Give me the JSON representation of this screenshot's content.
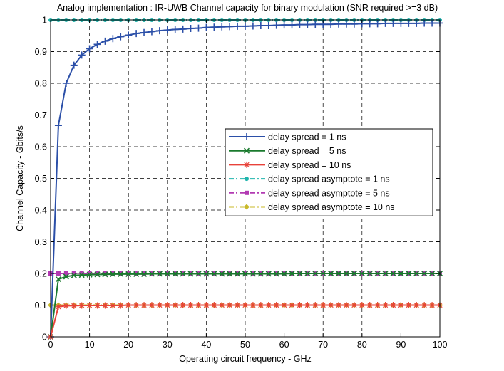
{
  "chart_data": {
    "type": "line",
    "title": "Analog implementation : IR-UWB Channel capacity for binary modulation (SNR required >=3 dB)",
    "xlabel": "Operating circuit frequency - GHz",
    "ylabel": "Channel Capacity - Gbits/s",
    "xlim": [
      0,
      100
    ],
    "ylim": [
      0,
      1
    ],
    "xticks": [
      0,
      10,
      20,
      30,
      40,
      50,
      60,
      70,
      80,
      90,
      100
    ],
    "yticks": [
      0,
      0.1,
      0.2,
      0.3,
      0.4,
      0.5,
      0.6,
      0.7,
      0.8,
      0.9,
      1
    ],
    "xtick_labels": [
      "0",
      "10",
      "20",
      "30",
      "40",
      "50",
      "60",
      "70",
      "80",
      "90",
      "100"
    ],
    "ytick_labels": [
      "0",
      "0.1",
      "0.2",
      "0.3",
      "0.4",
      "0.5",
      "0.6",
      "0.7",
      "0.8",
      "0.9",
      "1"
    ],
    "grid": true,
    "legend_position": "right-middle",
    "x": [
      0,
      2,
      4,
      6,
      8,
      10,
      12,
      14,
      16,
      18,
      20,
      22,
      24,
      26,
      28,
      30,
      32,
      34,
      36,
      38,
      40,
      42,
      44,
      46,
      48,
      50,
      52,
      54,
      56,
      58,
      60,
      62,
      64,
      66,
      68,
      70,
      72,
      74,
      76,
      78,
      80,
      82,
      84,
      86,
      88,
      90,
      92,
      94,
      96,
      98,
      100
    ],
    "series": [
      {
        "name": "delay spread = 1 ns",
        "color": "#2b4fa8",
        "marker": "plus",
        "dash": "solid",
        "values": [
          0,
          0.667,
          0.8,
          0.857,
          0.889,
          0.909,
          0.923,
          0.933,
          0.941,
          0.947,
          0.952,
          0.957,
          0.96,
          0.963,
          0.966,
          0.968,
          0.97,
          0.971,
          0.973,
          0.974,
          0.976,
          0.977,
          0.978,
          0.979,
          0.98,
          0.98,
          0.981,
          0.982,
          0.982,
          0.983,
          0.984,
          0.984,
          0.985,
          0.985,
          0.986,
          0.986,
          0.986,
          0.987,
          0.987,
          0.987,
          0.988,
          0.988,
          0.988,
          0.989,
          0.989,
          0.989,
          0.989,
          0.989,
          0.99,
          0.99,
          0.99
        ]
      },
      {
        "name": "delay spread = 5 ns",
        "color": "#1a7a2e",
        "marker": "x",
        "dash": "solid",
        "values": [
          0,
          0.182,
          0.19,
          0.194,
          0.195,
          0.196,
          0.197,
          0.197,
          0.198,
          0.198,
          0.198,
          0.198,
          0.198,
          0.199,
          0.199,
          0.199,
          0.199,
          0.199,
          0.199,
          0.199,
          0.199,
          0.199,
          0.199,
          0.199,
          0.199,
          0.199,
          0.199,
          0.199,
          0.199,
          0.199,
          0.199,
          0.2,
          0.2,
          0.2,
          0.2,
          0.2,
          0.2,
          0.2,
          0.2,
          0.2,
          0.2,
          0.2,
          0.2,
          0.2,
          0.2,
          0.2,
          0.2,
          0.2,
          0.2,
          0.2,
          0.2
        ]
      },
      {
        "name": "delay spread = 10 ns",
        "color": "#e8423a",
        "marker": "star",
        "dash": "solid",
        "values": [
          0,
          0.095,
          0.098,
          0.098,
          0.099,
          0.099,
          0.099,
          0.099,
          0.099,
          0.099,
          0.1,
          0.1,
          0.1,
          0.1,
          0.1,
          0.1,
          0.1,
          0.1,
          0.1,
          0.1,
          0.1,
          0.1,
          0.1,
          0.1,
          0.1,
          0.1,
          0.1,
          0.1,
          0.1,
          0.1,
          0.1,
          0.1,
          0.1,
          0.1,
          0.1,
          0.1,
          0.1,
          0.1,
          0.1,
          0.1,
          0.1,
          0.1,
          0.1,
          0.1,
          0.1,
          0.1,
          0.1,
          0.1,
          0.1,
          0.1,
          0.1
        ]
      },
      {
        "name": "delay spread asymptote = 1 ns",
        "color": "#20b5ad",
        "marker": "circle",
        "dash": "dashdot",
        "values": [
          1,
          1,
          1,
          1,
          1,
          1,
          1,
          1,
          1,
          1,
          1,
          1,
          1,
          1,
          1,
          1,
          1,
          1,
          1,
          1,
          1,
          1,
          1,
          1,
          1,
          1,
          1,
          1,
          1,
          1,
          1,
          1,
          1,
          1,
          1,
          1,
          1,
          1,
          1,
          1,
          1,
          1,
          1,
          1,
          1,
          1,
          1,
          1,
          1,
          1,
          1
        ]
      },
      {
        "name": "delay spread asymptote = 5 ns",
        "color": "#b23ab2",
        "marker": "square",
        "dash": "dashdot",
        "values": [
          0.2,
          0.2,
          0.2,
          0.2,
          0.2,
          0.2,
          0.2,
          0.2,
          0.2,
          0.2,
          0.2,
          0.2,
          0.2,
          0.2,
          0.2,
          0.2,
          0.2,
          0.2,
          0.2,
          0.2,
          0.2,
          0.2,
          0.2,
          0.2,
          0.2,
          0.2,
          0.2,
          0.2,
          0.2,
          0.2,
          0.2,
          0.2,
          0.2,
          0.2,
          0.2,
          0.2,
          0.2,
          0.2,
          0.2,
          0.2,
          0.2,
          0.2,
          0.2,
          0.2,
          0.2,
          0.2,
          0.2,
          0.2,
          0.2,
          0.2,
          0.2
        ]
      },
      {
        "name": "delay spread asymptote = 10 ns",
        "color": "#c9b92a",
        "marker": "diamond",
        "dash": "dashdot",
        "values": [
          0.1,
          0.1,
          0.1,
          0.1,
          0.1,
          0.1,
          0.1,
          0.1,
          0.1,
          0.1,
          0.1,
          0.1,
          0.1,
          0.1,
          0.1,
          0.1,
          0.1,
          0.1,
          0.1,
          0.1,
          0.1,
          0.1,
          0.1,
          0.1,
          0.1,
          0.1,
          0.1,
          0.1,
          0.1,
          0.1,
          0.1,
          0.1,
          0.1,
          0.1,
          0.1,
          0.1,
          0.1,
          0.1,
          0.1,
          0.1,
          0.1,
          0.1,
          0.1,
          0.1,
          0.1,
          0.1,
          0.1,
          0.1,
          0.1,
          0.1,
          0.1
        ]
      }
    ]
  }
}
